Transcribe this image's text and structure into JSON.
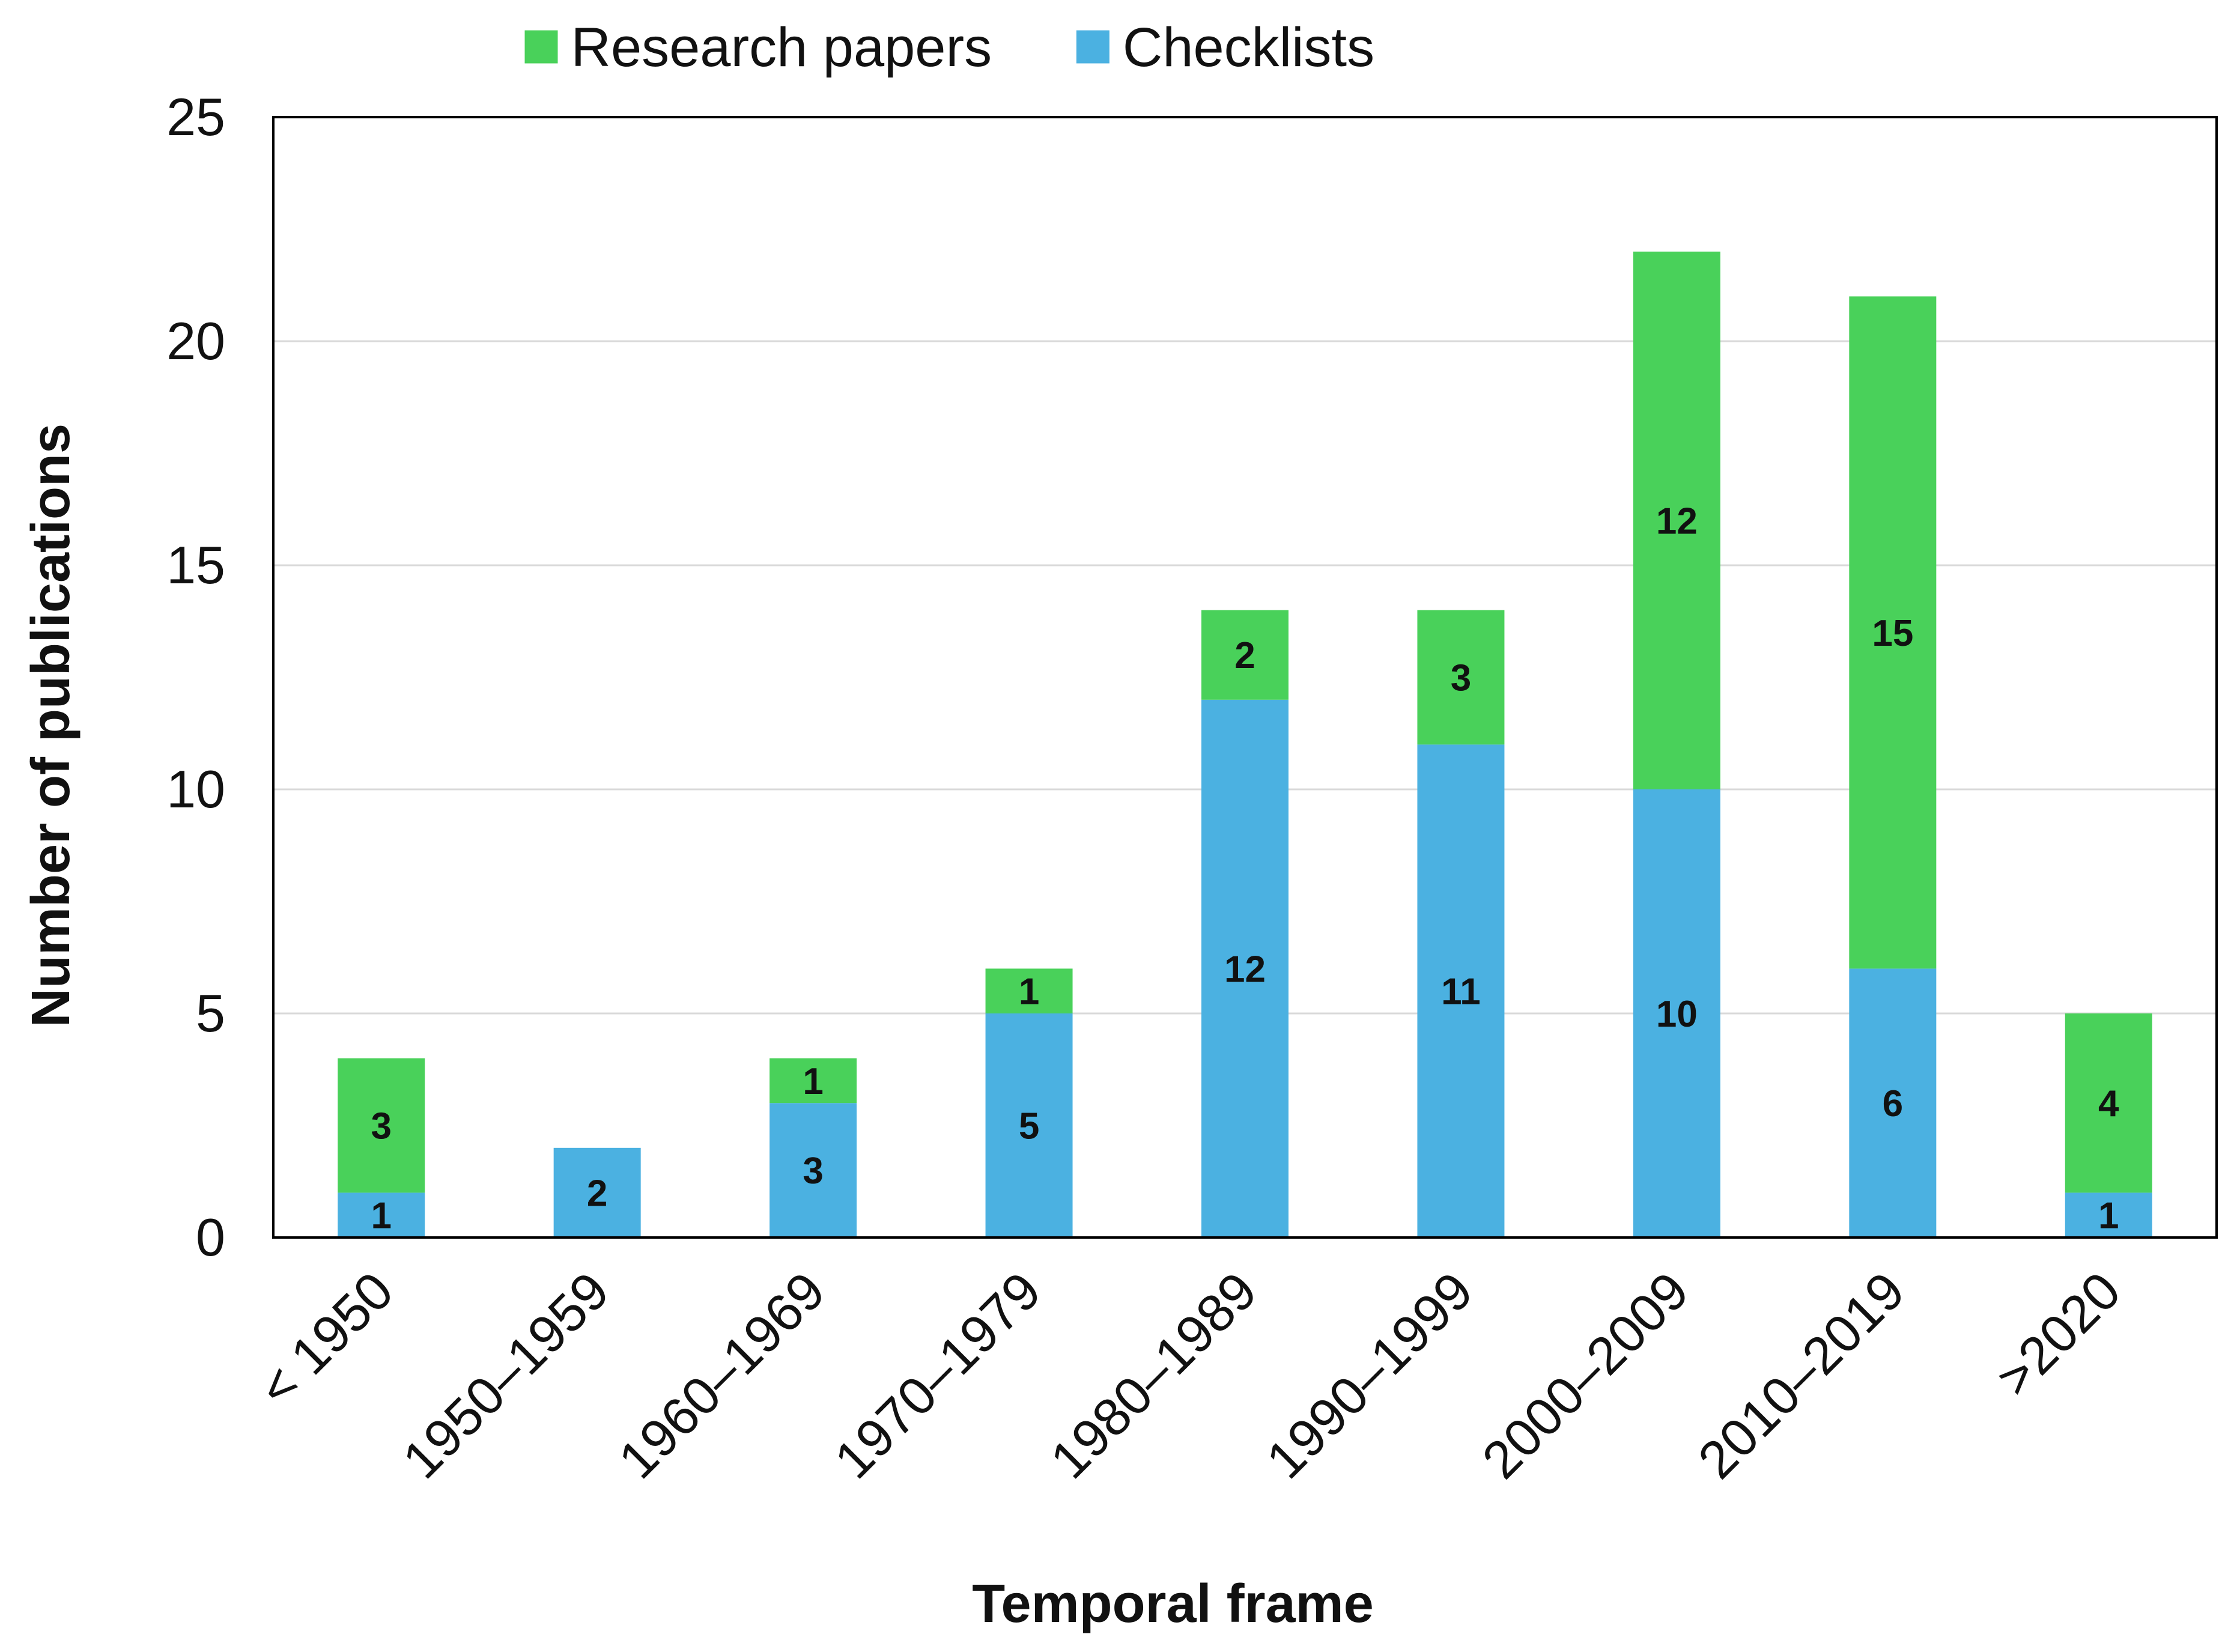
{
  "chart_data": {
    "type": "bar",
    "stacked": true,
    "title": "",
    "xlabel": "Temporal frame",
    "ylabel": "Number of publications",
    "categories": [
      "< 1950",
      "1950–1959",
      "1960–1969",
      "1970–1979",
      "1980–1989",
      "1990–1999",
      "2000–2009",
      "2010–2019",
      ">2020"
    ],
    "ylim": [
      0,
      25
    ],
    "yticks": [
      0,
      5,
      10,
      15,
      20,
      25
    ],
    "grid": true,
    "legend_position": "top-center",
    "series": [
      {
        "name": "Checklists",
        "color": "#4bb1e1",
        "values": [
          1,
          2,
          3,
          5,
          12,
          11,
          10,
          6,
          1
        ]
      },
      {
        "name": "Research papers",
        "color": "#49d15a",
        "values": [
          3,
          0,
          1,
          1,
          2,
          3,
          12,
          15,
          4
        ]
      }
    ],
    "legend_order": [
      "Research papers",
      "Checklists"
    ]
  }
}
